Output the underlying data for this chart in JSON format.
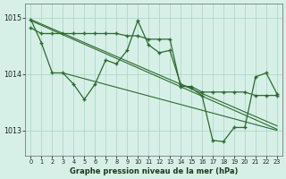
{
  "background_color": "#d6f0e8",
  "grid_color": "#b0d8c8",
  "line_color": "#2d6a2d",
  "xlabel": "Graphe pression niveau de la mer (hPa)",
  "xlim_min": -0.5,
  "xlim_max": 23.5,
  "ylim_min": 1012.55,
  "ylim_max": 1015.25,
  "yticks": [
    1013,
    1014,
    1015
  ],
  "xticks": [
    0,
    1,
    2,
    3,
    4,
    5,
    6,
    7,
    8,
    9,
    10,
    11,
    12,
    13,
    14,
    15,
    16,
    17,
    18,
    19,
    20,
    21,
    22,
    23
  ],
  "series_flat": [
    1014.82,
    1014.72,
    1014.72,
    1014.72,
    1014.72,
    1014.72,
    1014.72,
    1014.72,
    1014.72,
    1014.68,
    1014.68,
    1014.62,
    1014.62,
    1014.62,
    1013.78,
    1013.78,
    1013.68,
    1013.68,
    1013.68,
    1013.68,
    1013.68,
    1013.62,
    1013.62,
    1013.62
  ],
  "series_jagged": [
    1014.97,
    1014.55,
    1014.02,
    1014.02,
    1013.82,
    1013.55,
    1013.82,
    1014.25,
    1014.18,
    1014.42,
    1014.95,
    1014.52,
    1014.38,
    1014.42,
    1013.82,
    1013.75,
    1013.62,
    1012.82,
    1012.8,
    1013.05,
    1013.05,
    1013.95,
    1014.02,
    1013.65
  ],
  "trend_lines": [
    {
      "x0": 0,
      "y0": 1014.97,
      "x1": 23,
      "y1": 1013.08
    },
    {
      "x0": 0,
      "y0": 1014.95,
      "x1": 23,
      "y1": 1013.02
    },
    {
      "x0": 3,
      "y0": 1014.02,
      "x1": 23,
      "y1": 1013.0
    }
  ]
}
